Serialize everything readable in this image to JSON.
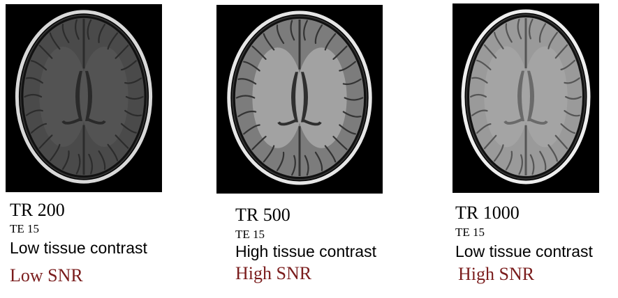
{
  "panels": [
    {
      "tr": "TR 200",
      "te": "TE 15",
      "contrast": "Low tissue contrast",
      "snr": "Low SNR",
      "tone": {
        "bg": "#000000",
        "tissue": "#4a4a4a",
        "sulci": "#2c2c2c",
        "skull": "#d8d8d8",
        "ventricle": "#2a2a2a",
        "wm": "#555555"
      }
    },
    {
      "tr": "TR 500",
      "te": "TE 15",
      "contrast": "High tissue contrast",
      "snr": "High SNR",
      "tone": {
        "bg": "#000000",
        "tissue": "#7c7c7c",
        "sulci": "#343434",
        "skull": "#e6e6e6",
        "ventricle": "#2f2f2f",
        "wm": "#a9a9a9"
      }
    },
    {
      "tr": "TR 1000",
      "te": "TE 15",
      "contrast": "Low tissue contrast",
      "snr": "High SNR",
      "tone": {
        "bg": "#000000",
        "tissue": "#9a9a9a",
        "sulci": "#555555",
        "skull": "#eeeeee",
        "ventricle": "#6a6a6a",
        "wm": "#a6a6a6"
      }
    }
  ],
  "colors": {
    "snr_text": "#7a1c1c",
    "caption_text": "#000000"
  }
}
